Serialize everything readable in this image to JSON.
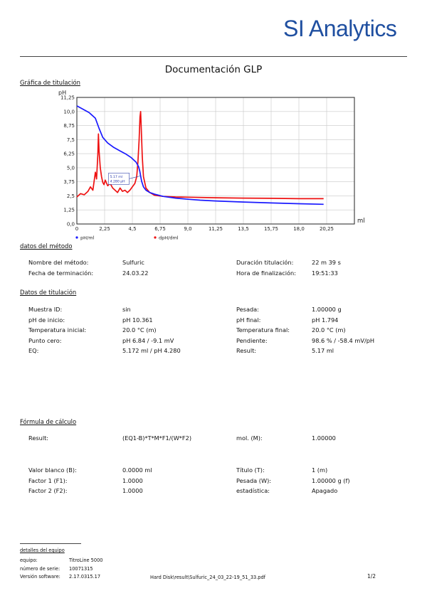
{
  "header": {
    "logo": "SI Analytics",
    "title": "Documentación GLP"
  },
  "chart_section_title": "Gráfica de titulación",
  "chart_data": {
    "type": "line",
    "ylabel": "pH",
    "xlabel": "ml",
    "xlim": [
      0,
      22.5
    ],
    "ylim": [
      0,
      11.25
    ],
    "x_ticks": [
      "0",
      "2,25",
      "4,5",
      "6,75",
      "9,0",
      "11,25",
      "13,5",
      "15,75",
      "18,0",
      "20,25"
    ],
    "y_ticks": [
      "0,0",
      "1,25",
      "2,5",
      "3,75",
      "5,0",
      "6,25",
      "7,5",
      "8,75",
      "10,0",
      "11,25"
    ],
    "grid": true,
    "legend_position": "bottom",
    "annotation": [
      "5.17 ml",
      "4.280 pH"
    ],
    "annotation_point": [
      5.17,
      4.28
    ],
    "series": [
      {
        "name": "pH/ml",
        "color": "#1a1aff",
        "x": [
          0,
          0.5,
          1.0,
          1.5,
          1.8,
          2.1,
          2.5,
          3.0,
          3.5,
          4.0,
          4.4,
          4.8,
          5.0,
          5.1,
          5.17,
          5.25,
          5.4,
          5.6,
          5.9,
          6.3,
          7.0,
          8.0,
          9.0,
          10.0,
          11.25,
          13.5,
          15.75,
          18.0,
          20.0
        ],
        "values": [
          10.5,
          10.2,
          9.9,
          9.4,
          8.5,
          7.7,
          7.2,
          6.8,
          6.5,
          6.2,
          5.9,
          5.5,
          5.1,
          4.7,
          4.28,
          3.8,
          3.3,
          3.0,
          2.8,
          2.65,
          2.45,
          2.3,
          2.2,
          2.12,
          2.05,
          1.95,
          1.87,
          1.8,
          1.75
        ]
      },
      {
        "name": "dpH/dml",
        "color": "#ee1111",
        "x": [
          0,
          0.3,
          0.6,
          0.9,
          1.1,
          1.3,
          1.5,
          1.6,
          1.7,
          1.75,
          1.8,
          1.9,
          2.0,
          2.1,
          2.2,
          2.3,
          2.5,
          2.7,
          2.9,
          3.1,
          3.3,
          3.5,
          3.7,
          3.9,
          4.1,
          4.3,
          4.5,
          4.7,
          4.85,
          4.95,
          5.05,
          5.12,
          5.17,
          5.22,
          5.3,
          5.4,
          5.6,
          5.9,
          6.3,
          7.0,
          8.0,
          9.0,
          11.25,
          13.5,
          15.75,
          18.0,
          20.0
        ],
        "values": [
          2.4,
          2.7,
          2.6,
          2.9,
          3.3,
          3.0,
          4.6,
          4.0,
          6.2,
          8.0,
          6.5,
          5.0,
          4.2,
          3.7,
          3.5,
          3.9,
          3.4,
          3.6,
          3.2,
          3.0,
          2.8,
          3.2,
          2.9,
          3.0,
          2.8,
          3.0,
          3.3,
          3.6,
          4.2,
          5.5,
          7.5,
          9.5,
          10.0,
          8.5,
          6.0,
          4.2,
          3.2,
          2.8,
          2.55,
          2.45,
          2.4,
          2.38,
          2.33,
          2.3,
          2.28,
          2.25,
          2.25
        ]
      }
    ]
  },
  "metodo": {
    "title": "datos del método",
    "rows": [
      [
        "Nombre del método:",
        "Sulfuric",
        "Duración titulación:",
        "22 m 39 s"
      ],
      [
        "Fecha de terminación:",
        "24.03.22",
        "Hora de finalización:",
        "19:51:33"
      ]
    ]
  },
  "titulacion": {
    "title": "Datos de titulación",
    "rows": [
      [
        "Muestra ID:",
        "sin",
        "Pesada:",
        "1.00000 g"
      ],
      [
        "pH de inicio:",
        "pH 10.361",
        "pH final:",
        "pH 1.794"
      ],
      [
        "Temperatura inicial:",
        "20.0 °C (m)",
        "Temperatura final:",
        "20.0 °C (m)"
      ],
      [
        "Punto cero:",
        "pH 6.84 / -9.1 mV",
        "Pendiente:",
        "98.6 % / -58.4 mV/pH"
      ],
      [
        "EQ:",
        "5.172 ml / pH 4.280",
        "Result:",
        "5.17 ml"
      ]
    ]
  },
  "formula": {
    "title": "Fórmula de cálculo",
    "result_row": [
      "Result:",
      "(EQ1-B)*T*M*F1/(W*F2)",
      "mol. (M):",
      "1.00000"
    ],
    "rows": [
      [
        "Valor blanco (B):",
        "0.0000 ml",
        "Título (T):",
        "1 (m)"
      ],
      [
        "Factor 1 (F1):",
        "1.0000",
        "Pesada (W):",
        "1.00000 g (f)"
      ],
      [
        "Factor 2 (F2):",
        "1.0000",
        "estadística:",
        "Apagado"
      ]
    ]
  },
  "footer": {
    "title": "detalles del equipo",
    "rows": [
      [
        "equipo:",
        "TitroLine 5000"
      ],
      [
        "número de serie:",
        "10071315"
      ],
      [
        "Versión software:",
        "2.17.0315.17"
      ]
    ],
    "path": "Hard Disk\\result\\Sulfuric_24_03_22-19_51_33.pdf",
    "page": "1/2"
  }
}
